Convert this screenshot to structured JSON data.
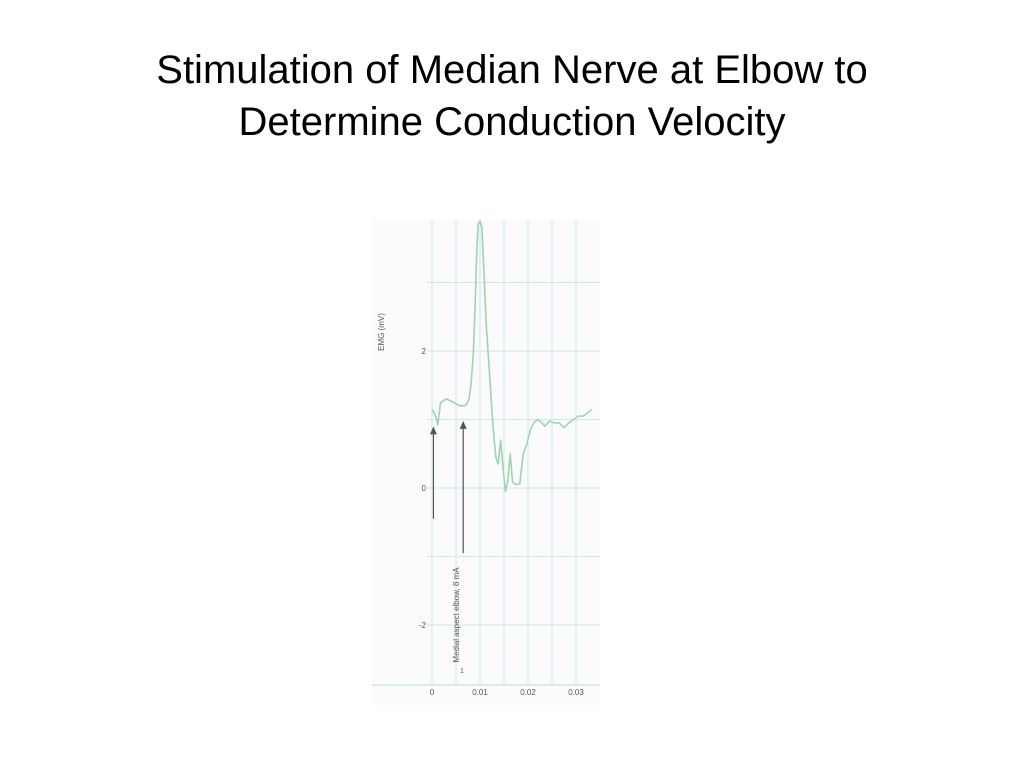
{
  "slide": {
    "title_line1": "Stimulation of Median Nerve at Elbow to",
    "title_line2": "Determine Conduction Velocity"
  },
  "chart_data": {
    "type": "line",
    "title": "",
    "ylabel": "EMG (mV)",
    "xlabel": "",
    "x_tick_labels": [
      "0",
      "0.01",
      "0.02",
      "0.03"
    ],
    "y_tick_labels": [
      "-2",
      "0",
      "2"
    ],
    "x_ticks": [
      0,
      0.01,
      0.02,
      0.03
    ],
    "y_ticks": [
      -2,
      0,
      2
    ],
    "xlim": [
      0,
      0.0335
    ],
    "ylim": [
      -2.85,
      3.9
    ],
    "grid": true,
    "colors": {
      "trace": "#9fd4b1",
      "grid": "#c9e8ee",
      "arrow": "#555555",
      "tick_text": "#555555"
    },
    "series": [
      {
        "x": [
          0,
          0.0008,
          0.0012,
          0.0018,
          0.003,
          0.0045,
          0.0058,
          0.0067,
          0.0072,
          0.0077,
          0.0081,
          0.0086,
          0.009,
          0.0093,
          0.0096,
          0.01,
          0.0104,
          0.0108,
          0.0113,
          0.012,
          0.0127,
          0.0133,
          0.0138,
          0.0143,
          0.0148,
          0.0153,
          0.0158,
          0.0163,
          0.0168,
          0.0175,
          0.0183,
          0.019,
          0.0198,
          0.0205,
          0.0212,
          0.022,
          0.0228,
          0.0235,
          0.0245,
          0.0255,
          0.0265,
          0.0275,
          0.0285,
          0.0295,
          0.0305,
          0.0315,
          0.0325,
          0.0333
        ],
        "y": [
          1.15,
          1.05,
          0.92,
          1.25,
          1.3,
          1.25,
          1.2,
          1.2,
          1.22,
          1.3,
          1.5,
          1.95,
          2.7,
          3.4,
          3.85,
          3.9,
          3.8,
          3.2,
          2.4,
          1.65,
          0.9,
          0.45,
          0.35,
          0.7,
          0.3,
          -0.05,
          0.1,
          0.5,
          0.08,
          0.05,
          0.06,
          0.5,
          0.65,
          0.85,
          0.95,
          1.0,
          0.96,
          0.9,
          0.98,
          0.95,
          0.95,
          0.88,
          0.95,
          1.0,
          1.05,
          1.05,
          1.1,
          1.15
        ]
      }
    ],
    "annotations": [
      {
        "text": "",
        "x": 0.0003,
        "y_tip": 0.9,
        "y_tail": -0.45
      },
      {
        "text": "Medial aspect elbow, 8 mA",
        "x": 0.0065,
        "y_tip": 0.98,
        "y_tail": -0.95
      }
    ],
    "extra_label": "1"
  }
}
